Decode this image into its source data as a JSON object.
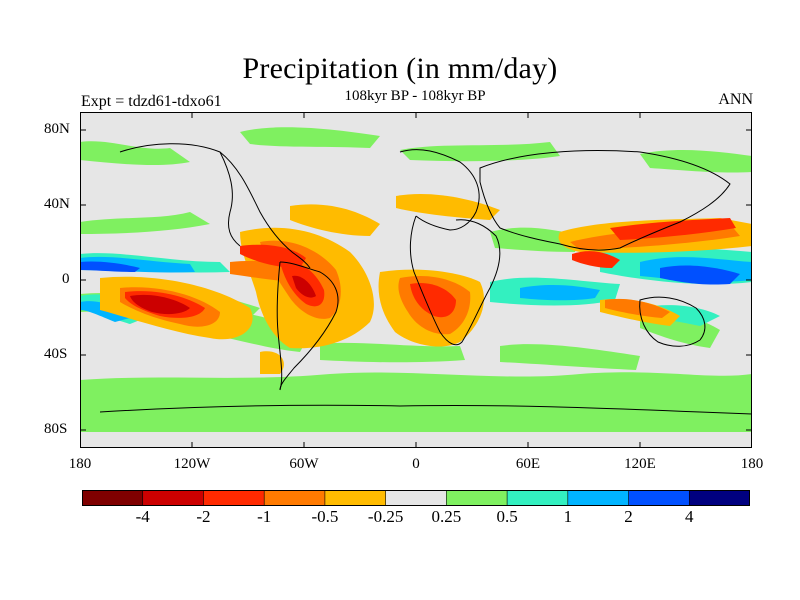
{
  "title": "Precipitation (in mm/day)",
  "subtitle": "108kyr BP - 108kyr BP",
  "left_label": "Expt = tdzd61-tdxo61",
  "right_label": "ANN",
  "y_ticks": [
    "80N",
    "40N",
    "0",
    "40S",
    "80S"
  ],
  "x_ticks": [
    "180",
    "120W",
    "60W",
    "0",
    "60E",
    "120E",
    "180"
  ],
  "colorbar": {
    "colors": [
      "#7f0000",
      "#cc0000",
      "#ff2a00",
      "#ff7a00",
      "#ffbb00",
      "#e6e6e6",
      "#7ff060",
      "#33f0c0",
      "#00b4ff",
      "#0050ff",
      "#000080"
    ],
    "labels": [
      "-4",
      "-2",
      "-1",
      "-0.5",
      "-0.25",
      "0.25",
      "0.5",
      "1",
      "2",
      "4"
    ]
  }
}
